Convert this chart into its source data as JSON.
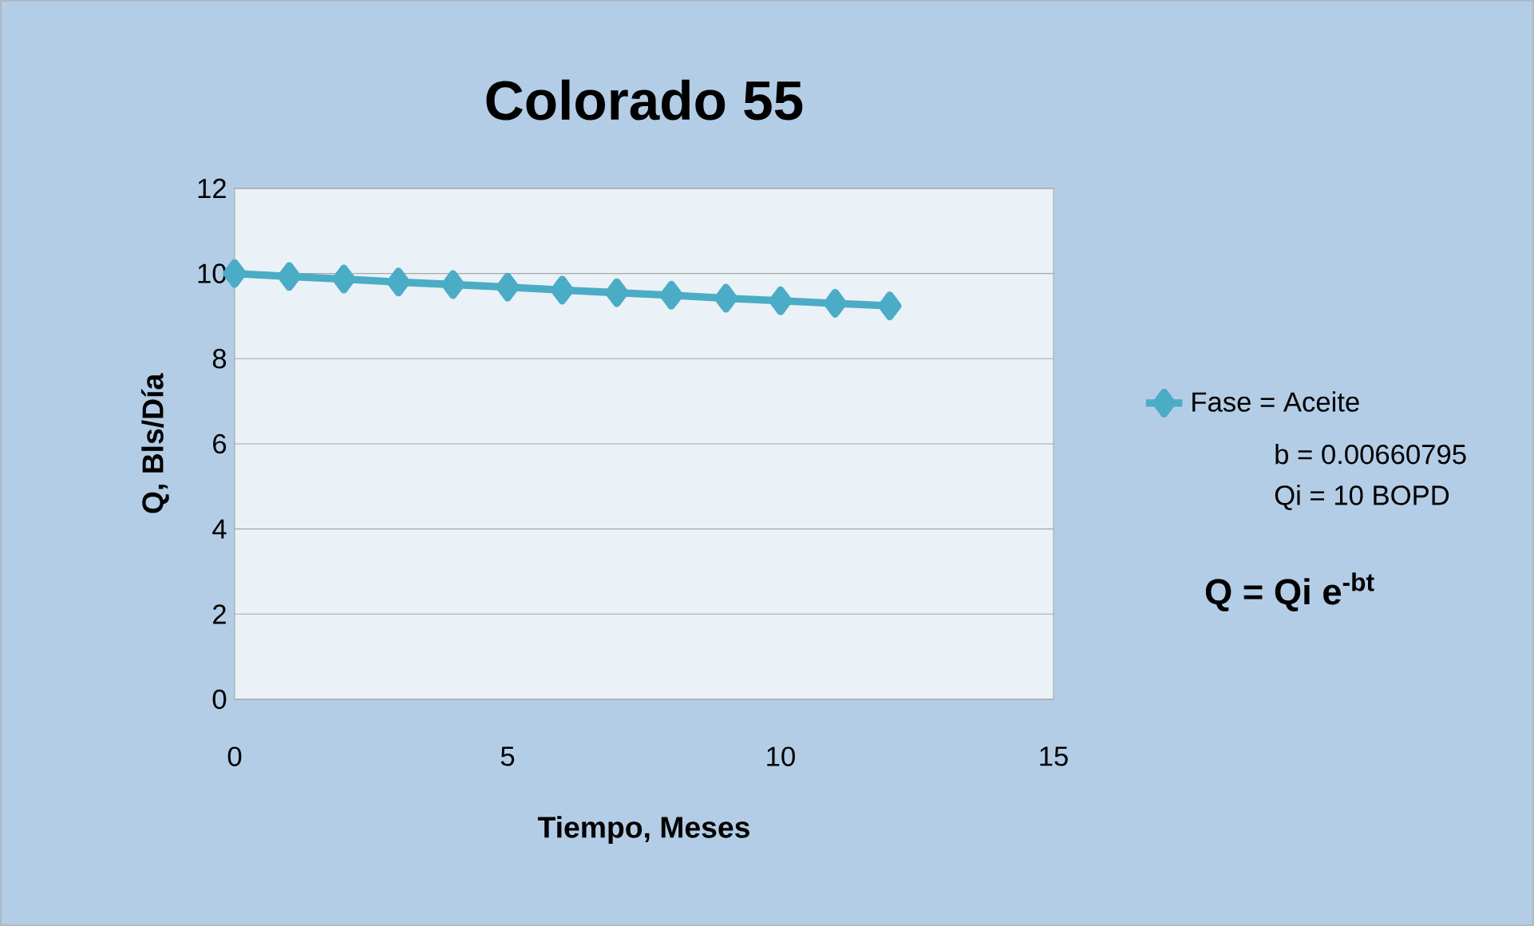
{
  "chart_data": {
    "type": "line",
    "title": "Colorado 55",
    "xlabel": "Tiempo, Meses",
    "ylabel": "Q, Bls/Día",
    "x": [
      0,
      1,
      2,
      3,
      4,
      5,
      6,
      7,
      8,
      9,
      10,
      11,
      12
    ],
    "series": [
      {
        "name": "Fase = Aceite",
        "color": "#4bacc6",
        "values": [
          10,
          9.93,
          9.87,
          9.8,
          9.74,
          9.68,
          9.61,
          9.55,
          9.49,
          9.42,
          9.36,
          9.3,
          9.24
        ]
      }
    ],
    "xlim": [
      0,
      15
    ],
    "xticks": [
      0,
      5,
      10,
      15
    ],
    "ylim": [
      0,
      12
    ],
    "yticks": [
      0,
      2,
      4,
      6,
      8,
      10,
      12
    ],
    "grid": "y",
    "legend": "right",
    "marker": "diamond",
    "line_style": "solid",
    "annotations": [
      "b = 0.00660795",
      "Qi = 10 BOPD",
      "Q = Qi e$^{-bt}$"
    ]
  }
}
